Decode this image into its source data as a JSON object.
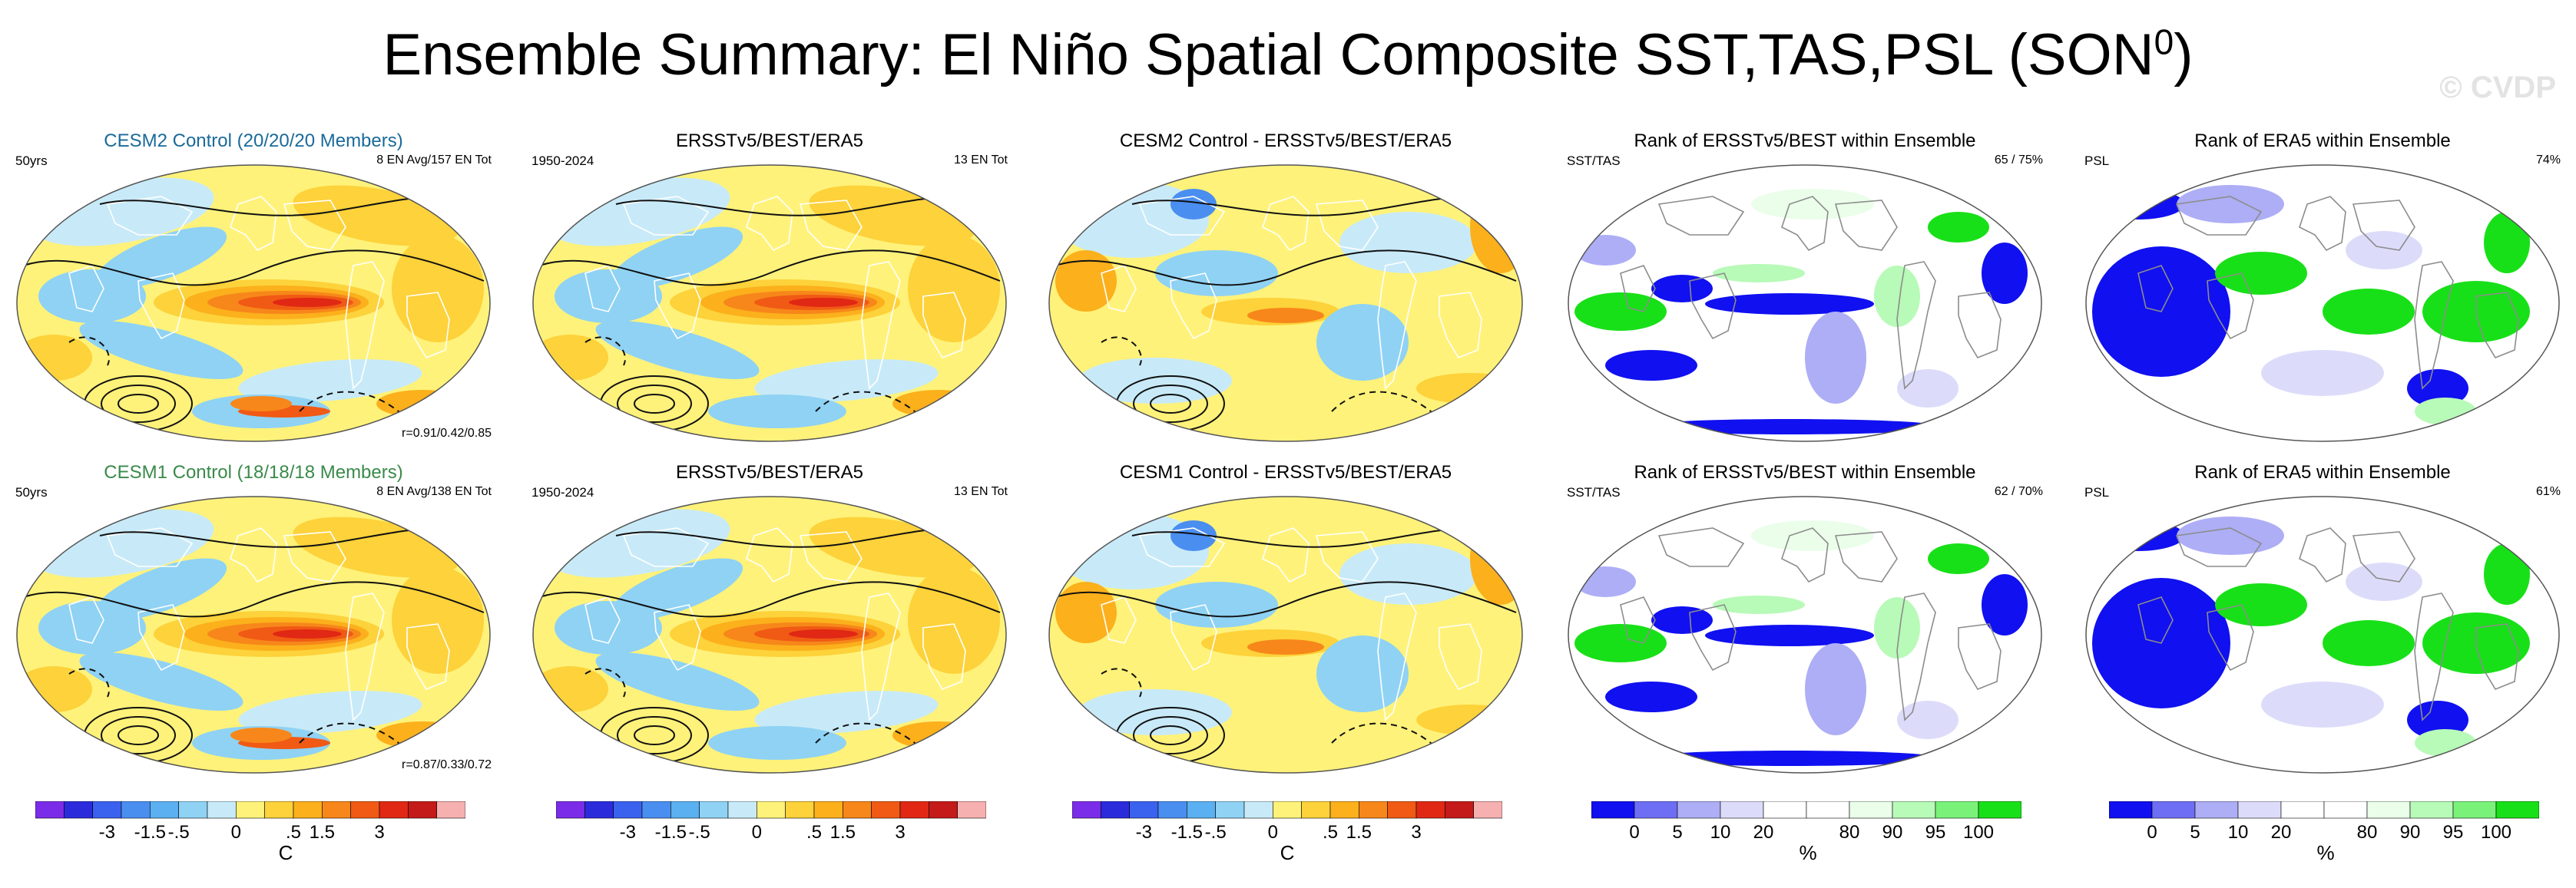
{
  "title": "Ensemble Summary: El Niño Spatial Composite SST,TAS,PSL (SON",
  "title_sup": "0",
  "title_close": ")",
  "watermark": "© CVDP",
  "rows": [
    {
      "panels": [
        {
          "kind": "model",
          "title": "CESM2 Control (20/20/20 Members)",
          "title_color": "#1a6a9a",
          "left": "50yrs",
          "right": "8 EN Avg/157 EN Tot",
          "bottom": "r=0.91/0.42/0.85"
        },
        {
          "kind": "obs",
          "title": "ERSSTv5/BEST/ERA5",
          "left": "1950-2024",
          "right": "13 EN Tot"
        },
        {
          "kind": "diff",
          "title": "CESM2 Control - ERSSTv5/BEST/ERA5"
        },
        {
          "kind": "rank",
          "title": "Rank of ERSSTv5/BEST within Ensemble",
          "left": "SST/TAS",
          "right": "65 /  75%"
        },
        {
          "kind": "rankpsl",
          "title": "Rank of ERA5 within Ensemble",
          "left": "PSL",
          "right": "74%"
        }
      ]
    },
    {
      "panels": [
        {
          "kind": "model",
          "title": "CESM1 Control (18/18/18 Members)",
          "title_color": "#3a8a4a",
          "left": "50yrs",
          "right": "8 EN Avg/138 EN Tot",
          "bottom": "r=0.87/0.33/0.72"
        },
        {
          "kind": "obs",
          "title": "ERSSTv5/BEST/ERA5",
          "left": "1950-2024",
          "right": "13 EN Tot"
        },
        {
          "kind": "diff",
          "title": "CESM1 Control - ERSSTv5/BEST/ERA5"
        },
        {
          "kind": "rank",
          "title": "Rank of ERSSTv5/BEST within Ensemble",
          "left": "SST/TAS",
          "right": "62 /  70%"
        },
        {
          "kind": "rankpsl",
          "title": "Rank of ERA5 within Ensemble",
          "left": "PSL",
          "right": "61%"
        }
      ]
    }
  ],
  "colorbars": {
    "temp": {
      "unit": "C",
      "colors": [
        "#7b2ce8",
        "#2b2bdc",
        "#3a62ee",
        "#4a8ef0",
        "#5ab0f0",
        "#8fd2f4",
        "#c8eaf8",
        "#fff27a",
        "#fdd23a",
        "#fbb01c",
        "#f7871a",
        "#f05a14",
        "#e02814",
        "#c41a1a",
        "#f6b0b0"
      ],
      "labels": [
        "-3",
        "-1.5",
        "-.5",
        "0",
        ".5",
        "1.5",
        "3"
      ],
      "label_positions": [
        2.5,
        4,
        5,
        7,
        9,
        10,
        12
      ]
    },
    "rank": {
      "unit": "%",
      "colors": [
        "#1010f0",
        "#6e6ef4",
        "#aeaef6",
        "#dcdcfa",
        "#ffffff",
        "#ffffff",
        "#eafeea",
        "#b8fab8",
        "#7af27a",
        "#18e018"
      ],
      "labels": [
        "0",
        "5",
        "10",
        "20",
        "80",
        "90",
        "95",
        "100"
      ],
      "label_positions": [
        1,
        2,
        3,
        4,
        6,
        7,
        8,
        9
      ]
    }
  }
}
